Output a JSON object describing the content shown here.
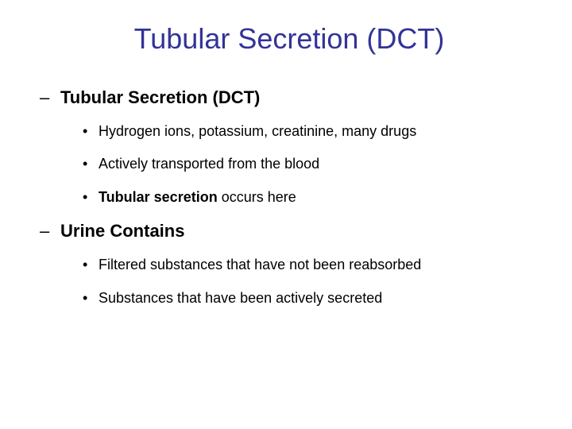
{
  "slide": {
    "title": "Tubular Secretion (DCT)",
    "title_color": "#333398",
    "title_fontsize": 36,
    "background_color": "#ffffff",
    "sections": [
      {
        "heading": "Tubular Secretion (DCT)",
        "bullets": [
          {
            "text": "Hydrogen ions, potassium, creatinine, many drugs"
          },
          {
            "text": "Actively transported from the blood"
          },
          {
            "bold_prefix": "Tubular secretion",
            "rest": " occurs here"
          }
        ]
      },
      {
        "heading": "Urine Contains",
        "bullets": [
          {
            "text": "Filtered substances that have not been reabsorbed"
          },
          {
            "text": "Substances that have been actively secreted"
          }
        ]
      }
    ],
    "heading_fontsize": 22,
    "bullet_fontsize": 18,
    "text_color": "#000000"
  }
}
